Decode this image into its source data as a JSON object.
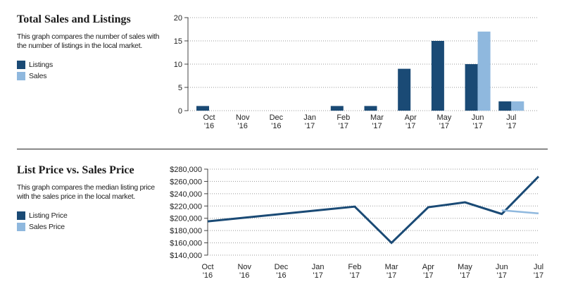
{
  "colors": {
    "dark": "#1a4a75",
    "light": "#8fb8de",
    "grid": "#999999",
    "axis": "#444444"
  },
  "charts": [
    {
      "title": "Total Sales and Listings",
      "description": "This graph compares the number of sales with the number of listings in the local market.",
      "legend": [
        {
          "label": "Listings",
          "color": "#1a4a75"
        },
        {
          "label": "Sales",
          "color": "#8fb8de"
        }
      ]
    },
    {
      "title": "List Price vs. Sales Price",
      "description": "This graph compares the median listing price with the sales price in the local market.",
      "legend": [
        {
          "label": "Listing Price",
          "color": "#1a4a75"
        },
        {
          "label": "Sales Price",
          "color": "#8fb8de"
        }
      ]
    }
  ],
  "chart_data": [
    {
      "type": "bar",
      "categories": [
        "Oct '16",
        "Nov '16",
        "Dec '16",
        "Jan '17",
        "Feb '17",
        "Mar '17",
        "Apr '17",
        "May '17",
        "Jun '17",
        "Jul '17"
      ],
      "category_labels": [
        [
          "Oct",
          "'16"
        ],
        [
          "Nov",
          "'16"
        ],
        [
          "Dec",
          "'16"
        ],
        [
          "Jan",
          "'17"
        ],
        [
          "Feb",
          "'17"
        ],
        [
          "Mar",
          "'17"
        ],
        [
          "Apr",
          "'17"
        ],
        [
          "May",
          "'17"
        ],
        [
          "Jun",
          "'17"
        ],
        [
          "Jul",
          "'17"
        ]
      ],
      "series": [
        {
          "name": "Listings",
          "values": [
            1,
            0,
            0,
            0,
            1,
            1,
            9,
            15,
            10,
            2
          ]
        },
        {
          "name": "Sales",
          "values": [
            0,
            0,
            0,
            0,
            0,
            0,
            0,
            0,
            17,
            2
          ]
        }
      ],
      "ylim": [
        0,
        20
      ],
      "yticks": [
        0,
        5,
        10,
        15,
        20
      ],
      "ytick_labels": [
        "0",
        "5",
        "10",
        "15",
        "20"
      ],
      "grid": true,
      "legend_position": "left"
    },
    {
      "type": "line",
      "categories": [
        "Oct '16",
        "Nov '16",
        "Dec '16",
        "Jan '17",
        "Feb '17",
        "Mar '17",
        "Apr '17",
        "May '17",
        "Jun '17",
        "Jul '17"
      ],
      "category_labels": [
        [
          "Oct",
          "'16"
        ],
        [
          "Nov",
          "'16"
        ],
        [
          "Dec",
          "'16"
        ],
        [
          "Jan",
          "'17"
        ],
        [
          "Feb",
          "'17"
        ],
        [
          "Mar",
          "'17"
        ],
        [
          "Apr",
          "'17"
        ],
        [
          "May",
          "'17"
        ],
        [
          "Jun",
          "'17"
        ],
        [
          "Jul",
          "'17"
        ]
      ],
      "series": [
        {
          "name": "Listing Price",
          "values": [
            195000,
            201000,
            207000,
            213000,
            219000,
            160000,
            218000,
            226000,
            207000,
            268000
          ]
        },
        {
          "name": "Sales Price",
          "values": [
            null,
            null,
            null,
            null,
            null,
            null,
            null,
            null,
            213000,
            208000
          ]
        }
      ],
      "ylim": [
        140000,
        280000
      ],
      "yticks": [
        140000,
        160000,
        180000,
        200000,
        220000,
        240000,
        260000,
        280000
      ],
      "ytick_labels": [
        "$140,000",
        "$160,000",
        "$180,000",
        "$200,000",
        "$220,000",
        "$240,000",
        "$260,000",
        "$280,000"
      ],
      "grid": true,
      "legend_position": "left"
    }
  ]
}
